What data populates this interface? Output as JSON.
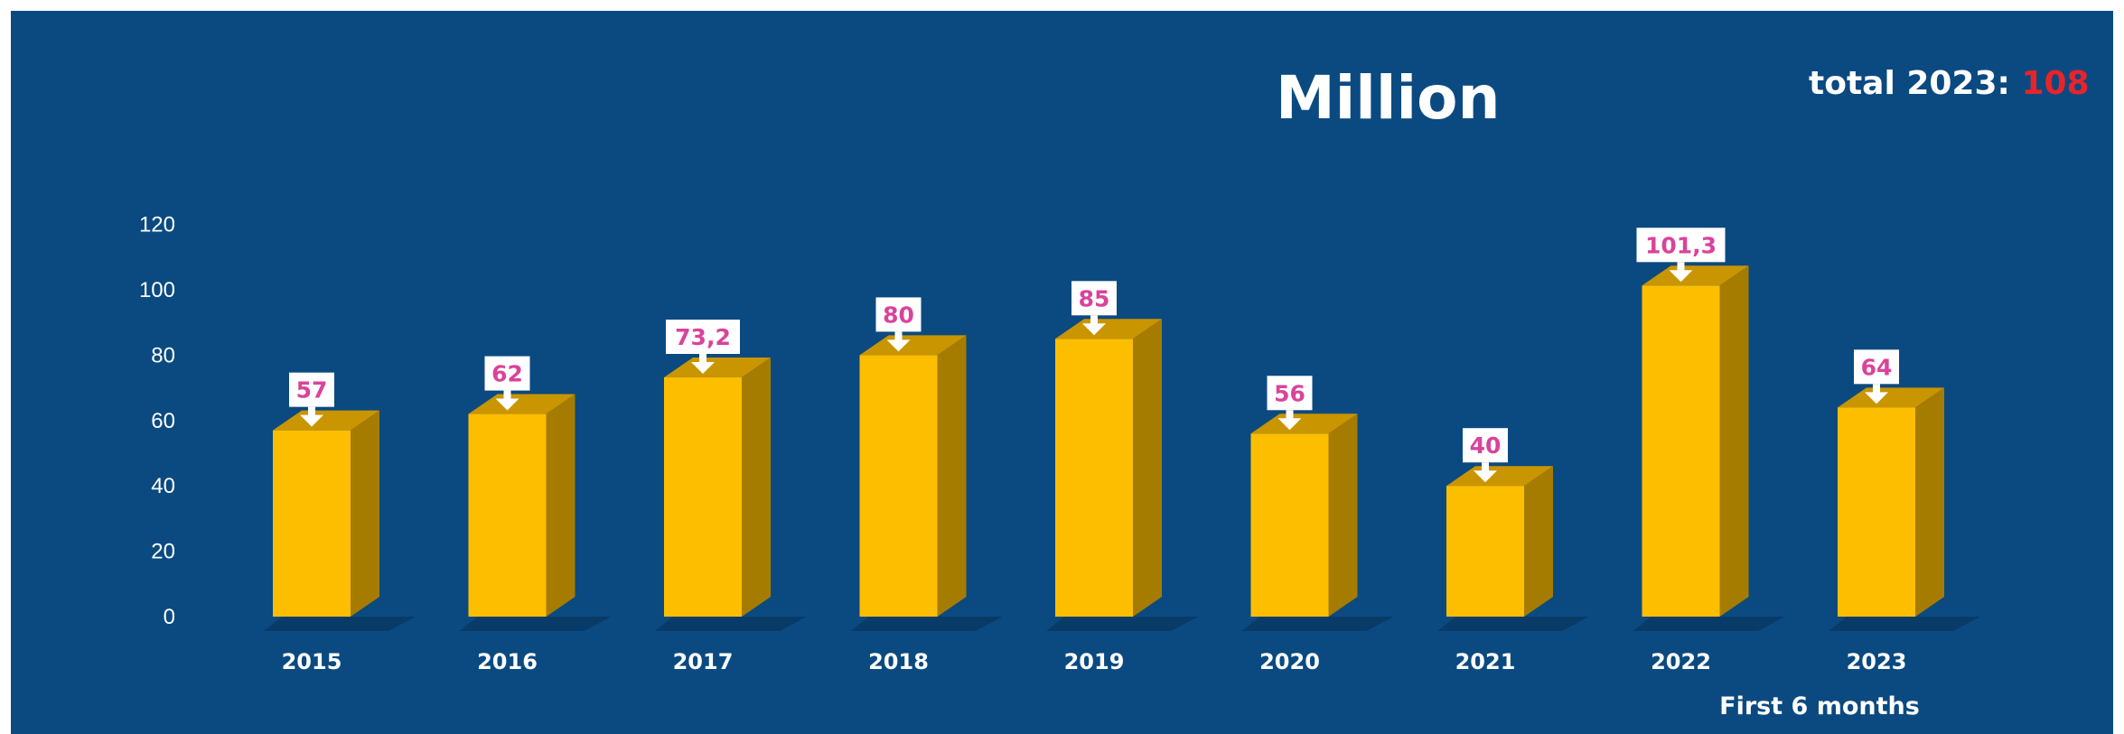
{
  "chart_data": {
    "type": "bar",
    "categories": [
      "2015",
      "2016",
      "2017",
      "2018",
      "2019",
      "2020",
      "2021",
      "2022",
      "2023"
    ],
    "values": [
      57,
      62,
      73.2,
      80,
      85,
      56,
      40,
      101.3,
      64
    ],
    "data_labels": [
      "57",
      "62",
      "73,2",
      "80",
      "85",
      "56",
      "40",
      "101,3",
      "64"
    ],
    "ylim": [
      0,
      120
    ],
    "yticks": [
      0,
      20,
      40,
      60,
      80,
      100,
      120
    ],
    "unit_label": "Million",
    "total_label": "total 2023: ",
    "total_value": "108",
    "footnote": "First 6 months",
    "grid": false,
    "colors": {
      "background": "#0b4a80",
      "bar_front": "#fdbe00",
      "bar_side": "#a67c00",
      "bar_top": "#c99500",
      "label_text": "#d9439a",
      "total_value": "#e8242a"
    }
  }
}
